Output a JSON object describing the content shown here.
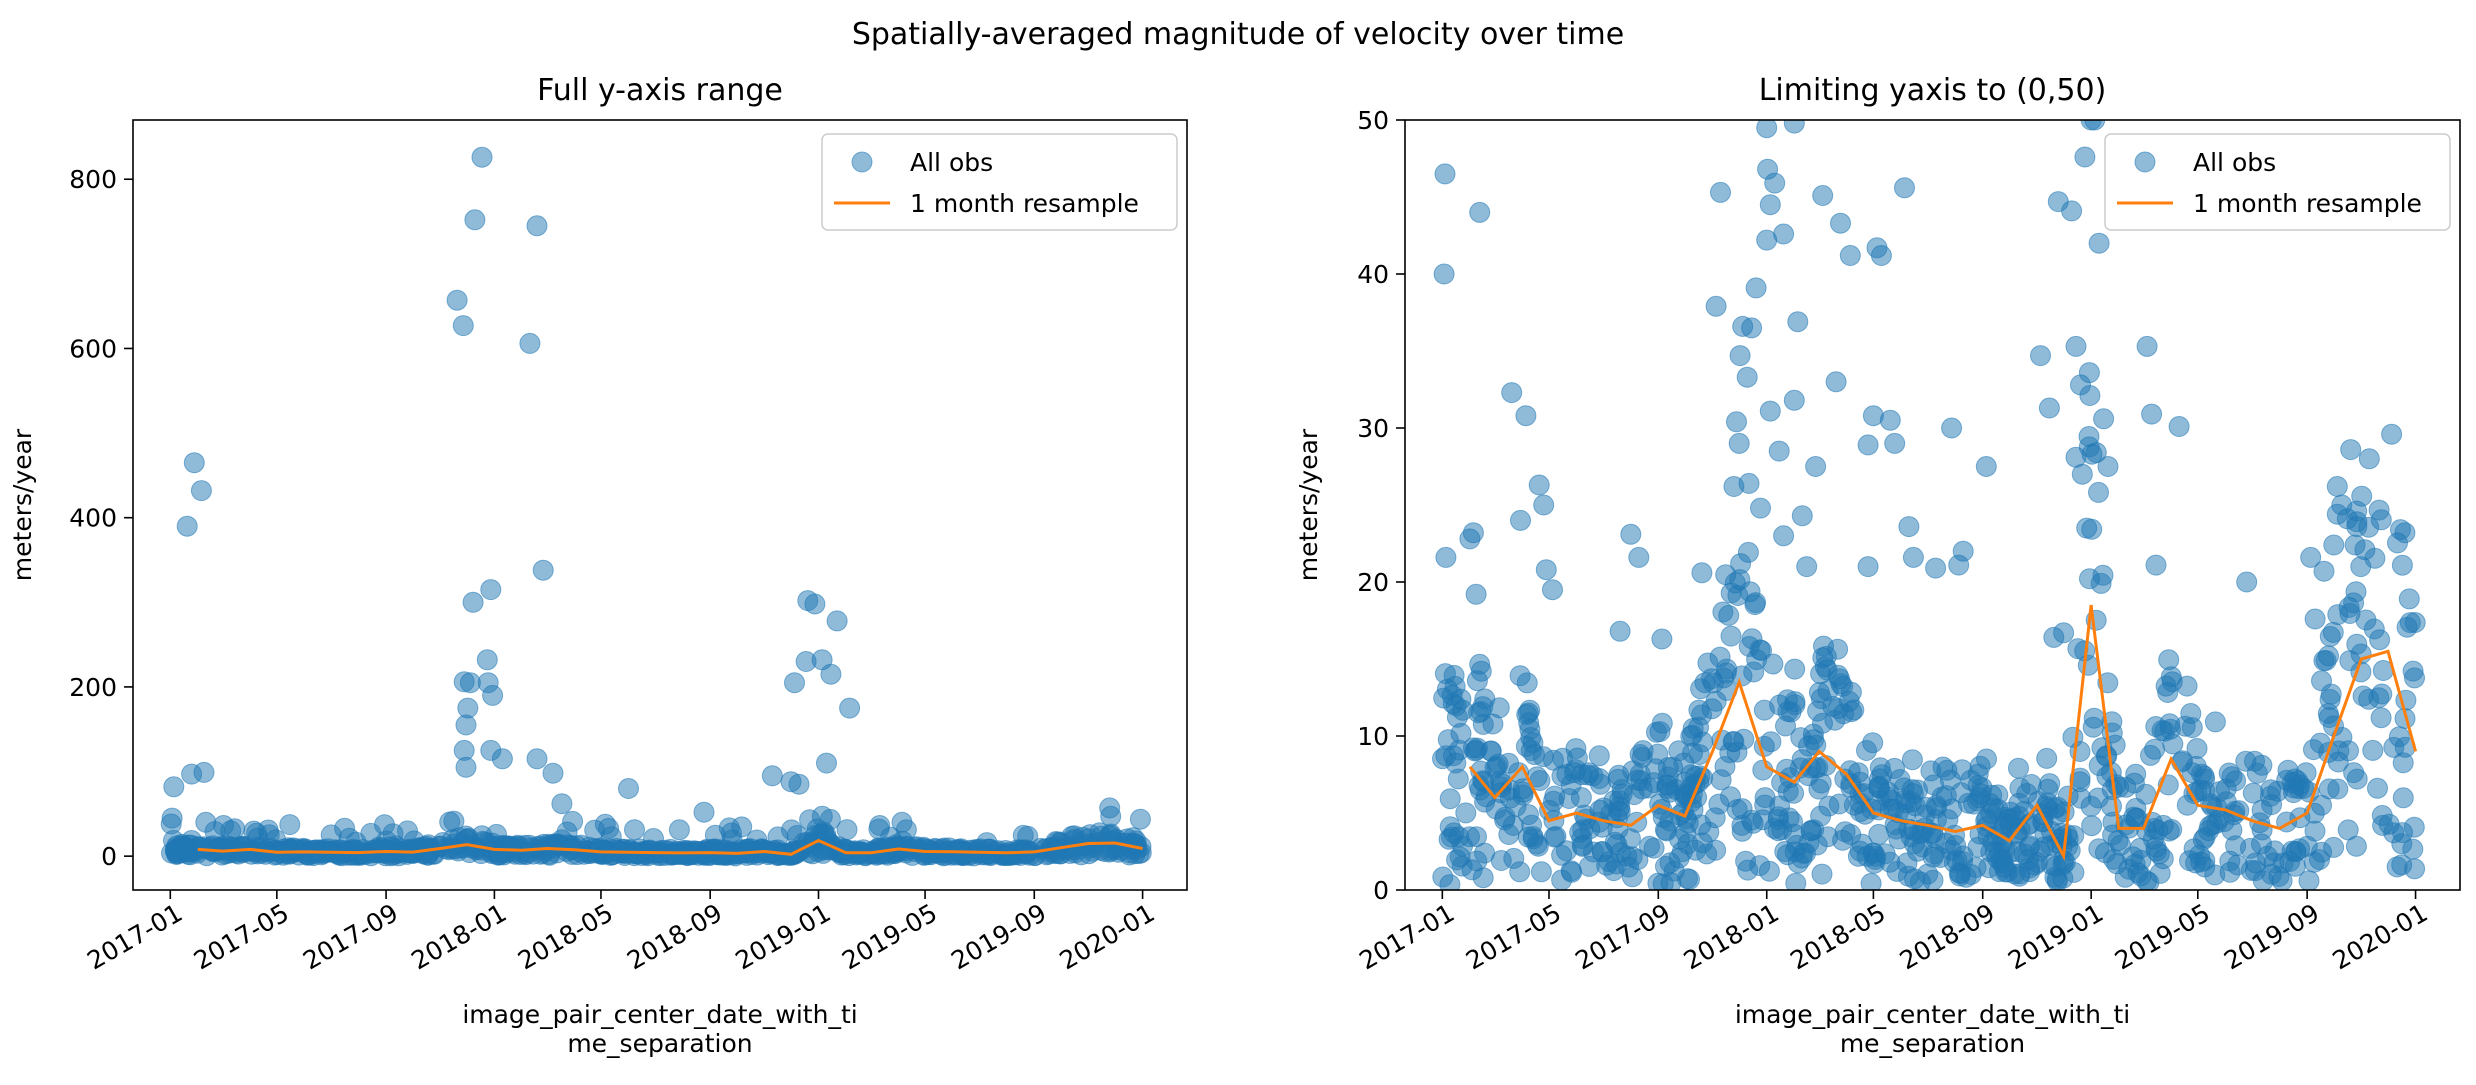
{
  "figure_title": "Spatially-averaged magnitude of velocity over time",
  "chart_data": [
    {
      "type": "scatter",
      "title": "Full y-axis range",
      "xlabel_lines": [
        "image_pair_center_date_with_ti",
        "me_separation"
      ],
      "ylabel": "meters/year",
      "x_tick_labels": [
        "2017-01",
        "2017-05",
        "2017-09",
        "2018-01",
        "2018-05",
        "2018-09",
        "2019-01",
        "2019-05",
        "2019-09",
        "2020-01"
      ],
      "y_ticks": [
        0,
        200,
        400,
        600,
        800
      ],
      "xlim": [
        "2016-11-20",
        "2020-02-20"
      ],
      "ylim": [
        -40,
        870
      ],
      "legend": {
        "position": "top-right",
        "entries": [
          "All obs",
          "1 month resample"
        ]
      },
      "colors": {
        "points": "#1f77b4",
        "line": "#ff7f0e"
      },
      "series": [
        {
          "name": "All obs",
          "kind": "points",
          "outliers": [
            [
              "2017-01-05",
              82
            ],
            [
              "2017-01-03",
              45
            ],
            [
              "2017-01-02",
              38
            ],
            [
              "2017-01-20",
              390
            ],
            [
              "2017-01-28",
              465
            ],
            [
              "2017-02-05",
              432
            ],
            [
              "2017-01-25",
              97
            ],
            [
              "2017-02-08",
              99
            ],
            [
              "2017-02-10",
              40
            ],
            [
              "2017-03-10",
              30
            ],
            [
              "2017-11-20",
              657
            ],
            [
              "2017-11-27",
              627
            ],
            [
              "2017-12-10",
              752
            ],
            [
              "2017-12-18",
              826
            ],
            [
              "2018-02-18",
              745
            ],
            [
              "2018-02-10",
              606
            ],
            [
              "2018-02-25",
              338
            ],
            [
              "2017-12-28",
              315
            ],
            [
              "2017-12-08",
              300
            ],
            [
              "2017-12-24",
              232
            ],
            [
              "2017-11-28",
              206
            ],
            [
              "2017-12-05",
              205
            ],
            [
              "2017-12-25",
              205
            ],
            [
              "2017-12-30",
              190
            ],
            [
              "2017-12-02",
              175
            ],
            [
              "2017-11-30",
              155
            ],
            [
              "2017-11-28",
              125
            ],
            [
              "2017-12-28",
              125
            ],
            [
              "2018-01-10",
              115
            ],
            [
              "2018-02-18",
              115
            ],
            [
              "2018-03-08",
              98
            ],
            [
              "2017-11-30",
              105
            ],
            [
              "2018-03-18",
              62
            ],
            [
              "2018-06-01",
              80
            ],
            [
              "2018-08-25",
              52
            ],
            [
              "2018-12-20",
              302
            ],
            [
              "2018-12-28",
              298
            ],
            [
              "2019-01-22",
              278
            ],
            [
              "2018-12-18",
              230
            ],
            [
              "2019-01-05",
              232
            ],
            [
              "2019-01-15",
              215
            ],
            [
              "2018-12-05",
              205
            ],
            [
              "2019-02-05",
              175
            ],
            [
              "2018-12-10",
              85
            ],
            [
              "2019-01-10",
              110
            ],
            [
              "2018-11-10",
              95
            ],
            [
              "2018-12-01",
              88
            ],
            [
              "2019-04-05",
              40
            ],
            [
              "2019-11-25",
              57
            ],
            [
              "2019-03-10",
              32
            ]
          ]
        },
        {
          "name": "1 month resample",
          "kind": "line",
          "points": [
            [
              "2017-02-01",
              8
            ],
            [
              "2017-03-01",
              6
            ],
            [
              "2017-04-01",
              8
            ],
            [
              "2017-05-01",
              4.5
            ],
            [
              "2017-06-01",
              5
            ],
            [
              "2017-07-01",
              4.5
            ],
            [
              "2017-08-01",
              4.2
            ],
            [
              "2017-09-01",
              5.5
            ],
            [
              "2017-10-01",
              4.8
            ],
            [
              "2017-11-01",
              9
            ],
            [
              "2017-12-01",
              13.5
            ],
            [
              "2018-01-01",
              8
            ],
            [
              "2018-02-01",
              7
            ],
            [
              "2018-03-01",
              9
            ],
            [
              "2018-04-01",
              7.5
            ],
            [
              "2018-05-01",
              5
            ],
            [
              "2018-06-01",
              4.5
            ],
            [
              "2018-07-01",
              4.2
            ],
            [
              "2018-08-01",
              3.8
            ],
            [
              "2018-09-01",
              4.2
            ],
            [
              "2018-10-01",
              3.2
            ],
            [
              "2018-11-01",
              5.5
            ],
            [
              "2018-12-01",
              2.2
            ],
            [
              "2019-01-01",
              18.5
            ],
            [
              "2019-02-01",
              4
            ],
            [
              "2019-03-01",
              4
            ],
            [
              "2019-04-01",
              8.5
            ],
            [
              "2019-05-01",
              5.5
            ],
            [
              "2019-06-01",
              5.2
            ],
            [
              "2019-07-01",
              4.5
            ],
            [
              "2019-08-01",
              4
            ],
            [
              "2019-09-01",
              5
            ],
            [
              "2019-10-01",
              10
            ],
            [
              "2019-11-01",
              15
            ],
            [
              "2019-12-01",
              15.5
            ],
            [
              "2020-01-01",
              9
            ]
          ]
        }
      ]
    },
    {
      "type": "scatter",
      "title": "Limiting yaxis to (0,50)",
      "xlabel_lines": [
        "image_pair_center_date_with_ti",
        "me_separation"
      ],
      "ylabel": "meters/year",
      "x_tick_labels": [
        "2017-01",
        "2017-05",
        "2017-09",
        "2018-01",
        "2018-05",
        "2018-09",
        "2019-01",
        "2019-05",
        "2019-09",
        "2020-01"
      ],
      "y_ticks": [
        0,
        10,
        20,
        30,
        40,
        50
      ],
      "xlim": [
        "2016-11-20",
        "2020-02-20"
      ],
      "ylim": [
        0,
        50
      ],
      "legend": {
        "position": "top-right",
        "entries": [
          "All obs",
          "1 month resample"
        ]
      },
      "colors": {
        "points": "#1f77b4",
        "line": "#ff7f0e"
      },
      "series": [
        {
          "name": "All obs",
          "kind": "points",
          "outliers": [
            [
              "2017-01-04",
              46.5
            ],
            [
              "2017-01-03",
              40
            ],
            [
              "2017-02-12",
              44
            ],
            [
              "2017-03-20",
              32.3
            ],
            [
              "2017-04-05",
              30.8
            ],
            [
              "2017-04-20",
              26.3
            ],
            [
              "2017-04-25",
              25
            ],
            [
              "2017-03-30",
              24
            ],
            [
              "2017-02-01",
              22.8
            ],
            [
              "2017-02-05",
              23.2
            ],
            [
              "2017-01-05",
              21.6
            ],
            [
              "2017-02-08",
              19.2
            ],
            [
              "2017-04-28",
              20.8
            ],
            [
              "2017-05-05",
              19.5
            ],
            [
              "2017-07-20",
              16.8
            ],
            [
              "2017-08-01",
              23.1
            ],
            [
              "2017-08-10",
              21.6
            ],
            [
              "2017-09-05",
              16.3
            ],
            [
              "2017-10-20",
              20.6
            ],
            [
              "2017-11-05",
              37.9
            ],
            [
              "2017-11-10",
              45.3
            ],
            [
              "2017-12-05",
              36.6
            ],
            [
              "2017-12-15",
              36.5
            ],
            [
              "2017-12-02",
              34.7
            ],
            [
              "2017-12-10",
              33.3
            ],
            [
              "2017-12-20",
              39.1
            ],
            [
              "2018-01-01",
              49.5
            ],
            [
              "2018-01-02",
              46.8
            ],
            [
              "2018-01-05",
              44.5
            ],
            [
              "2018-01-10",
              45.9
            ],
            [
              "2018-01-20",
              42.6
            ],
            [
              "2018-01-01",
              42.2
            ],
            [
              "2018-02-01",
              49.8
            ],
            [
              "2018-02-05",
              36.9
            ],
            [
              "2018-03-05",
              45.1
            ],
            [
              "2018-03-25",
              43.3
            ],
            [
              "2018-04-05",
              41.2
            ],
            [
              "2018-05-05",
              41.7
            ],
            [
              "2018-05-10",
              41.2
            ],
            [
              "2018-06-05",
              45.6
            ],
            [
              "2017-11-28",
              30.4
            ],
            [
              "2017-12-01",
              29
            ],
            [
              "2017-11-25",
              26.2
            ],
            [
              "2017-12-12",
              26.4
            ],
            [
              "2018-01-05",
              31.1
            ],
            [
              "2018-01-15",
              28.5
            ],
            [
              "2018-02-01",
              31.8
            ],
            [
              "2018-02-25",
              27.5
            ],
            [
              "2018-03-20",
              33
            ],
            [
              "2018-05-01",
              30.8
            ],
            [
              "2018-05-20",
              30.5
            ],
            [
              "2018-05-25",
              29
            ],
            [
              "2018-04-25",
              28.9
            ],
            [
              "2018-07-28",
              30
            ],
            [
              "2018-09-05",
              27.5
            ],
            [
              "2017-12-25",
              24.8
            ],
            [
              "2018-01-20",
              23
            ],
            [
              "2018-02-10",
              24.3
            ],
            [
              "2018-06-10",
              23.6
            ],
            [
              "2018-06-15",
              21.6
            ],
            [
              "2018-07-10",
              20.9
            ],
            [
              "2018-08-10",
              22
            ],
            [
              "2018-08-05",
              21.1
            ],
            [
              "2018-04-25",
              21
            ],
            [
              "2018-02-15",
              21
            ],
            [
              "2018-11-05",
              34.7
            ],
            [
              "2018-11-15",
              31.3
            ],
            [
              "2018-11-25",
              44.7
            ],
            [
              "2018-12-10",
              44.1
            ],
            [
              "2018-12-15",
              35.3
            ],
            [
              "2018-12-20",
              32.8
            ],
            [
              "2019-01-01",
              50
            ],
            [
              "2019-01-05",
              50
            ],
            [
              "2018-12-25",
              47.6
            ],
            [
              "2019-01-10",
              42
            ],
            [
              "2019-01-15",
              30.6
            ],
            [
              "2018-12-30",
              33.6
            ],
            [
              "2019-01-02",
              28.3
            ],
            [
              "2018-12-15",
              28.1
            ],
            [
              "2018-12-22",
              27
            ],
            [
              "2019-01-20",
              27.5
            ],
            [
              "2019-03-05",
              35.3
            ],
            [
              "2019-03-10",
              30.9
            ],
            [
              "2019-04-10",
              30.1
            ],
            [
              "2019-03-15",
              21.1
            ],
            [
              "2018-12-27",
              23.5
            ],
            [
              "2018-12-01",
              16.7
            ],
            [
              "2018-11-20",
              16.4
            ],
            [
              "2019-06-25",
              20
            ],
            [
              "2019-09-05",
              21.6
            ],
            [
              "2019-09-20",
              20.7
            ],
            [
              "2019-10-05",
              26.2
            ],
            [
              "2019-10-10",
              25
            ],
            [
              "2019-10-05",
              24.4
            ],
            [
              "2019-10-20",
              28.6
            ],
            [
              "2019-11-10",
              28
            ],
            [
              "2019-12-05",
              29.6
            ],
            [
              "2019-12-20",
              23.2
            ],
            [
              "2019-12-25",
              18.9
            ],
            [
              "2019-12-15",
              23.4
            ],
            [
              "2019-10-25",
              22.4
            ],
            [
              "2019-11-05",
              22.1
            ],
            [
              "2019-10-01",
              22.4
            ],
            [
              "2019-09-10",
              17.6
            ],
            [
              "2019-09-25",
              15.2
            ]
          ]
        },
        {
          "name": "1 month resample",
          "kind": "line",
          "points": [
            [
              "2017-02-01",
              8
            ],
            [
              "2017-03-01",
              6
            ],
            [
              "2017-04-01",
              8
            ],
            [
              "2017-05-01",
              4.5
            ],
            [
              "2017-06-01",
              5
            ],
            [
              "2017-07-01",
              4.5
            ],
            [
              "2017-08-01",
              4.2
            ],
            [
              "2017-09-01",
              5.5
            ],
            [
              "2017-10-01",
              4.8
            ],
            [
              "2017-11-01",
              9
            ],
            [
              "2017-12-01",
              13.5
            ],
            [
              "2018-01-01",
              8
            ],
            [
              "2018-02-01",
              7
            ],
            [
              "2018-03-01",
              9
            ],
            [
              "2018-04-01",
              7.5
            ],
            [
              "2018-05-01",
              5
            ],
            [
              "2018-06-01",
              4.5
            ],
            [
              "2018-07-01",
              4.2
            ],
            [
              "2018-08-01",
              3.8
            ],
            [
              "2018-09-01",
              4.2
            ],
            [
              "2018-10-01",
              3.2
            ],
            [
              "2018-11-01",
              5.5
            ],
            [
              "2018-12-01",
              2.2
            ],
            [
              "2019-01-01",
              18.5
            ],
            [
              "2019-02-01",
              4
            ],
            [
              "2019-03-01",
              4
            ],
            [
              "2019-04-01",
              8.5
            ],
            [
              "2019-05-01",
              5.5
            ],
            [
              "2019-06-01",
              5.2
            ],
            [
              "2019-07-01",
              4.5
            ],
            [
              "2019-08-01",
              4
            ],
            [
              "2019-09-01",
              5
            ],
            [
              "2019-10-01",
              10
            ],
            [
              "2019-11-01",
              15
            ],
            [
              "2019-12-01",
              15.5
            ],
            [
              "2020-01-01",
              9
            ]
          ]
        }
      ]
    }
  ]
}
